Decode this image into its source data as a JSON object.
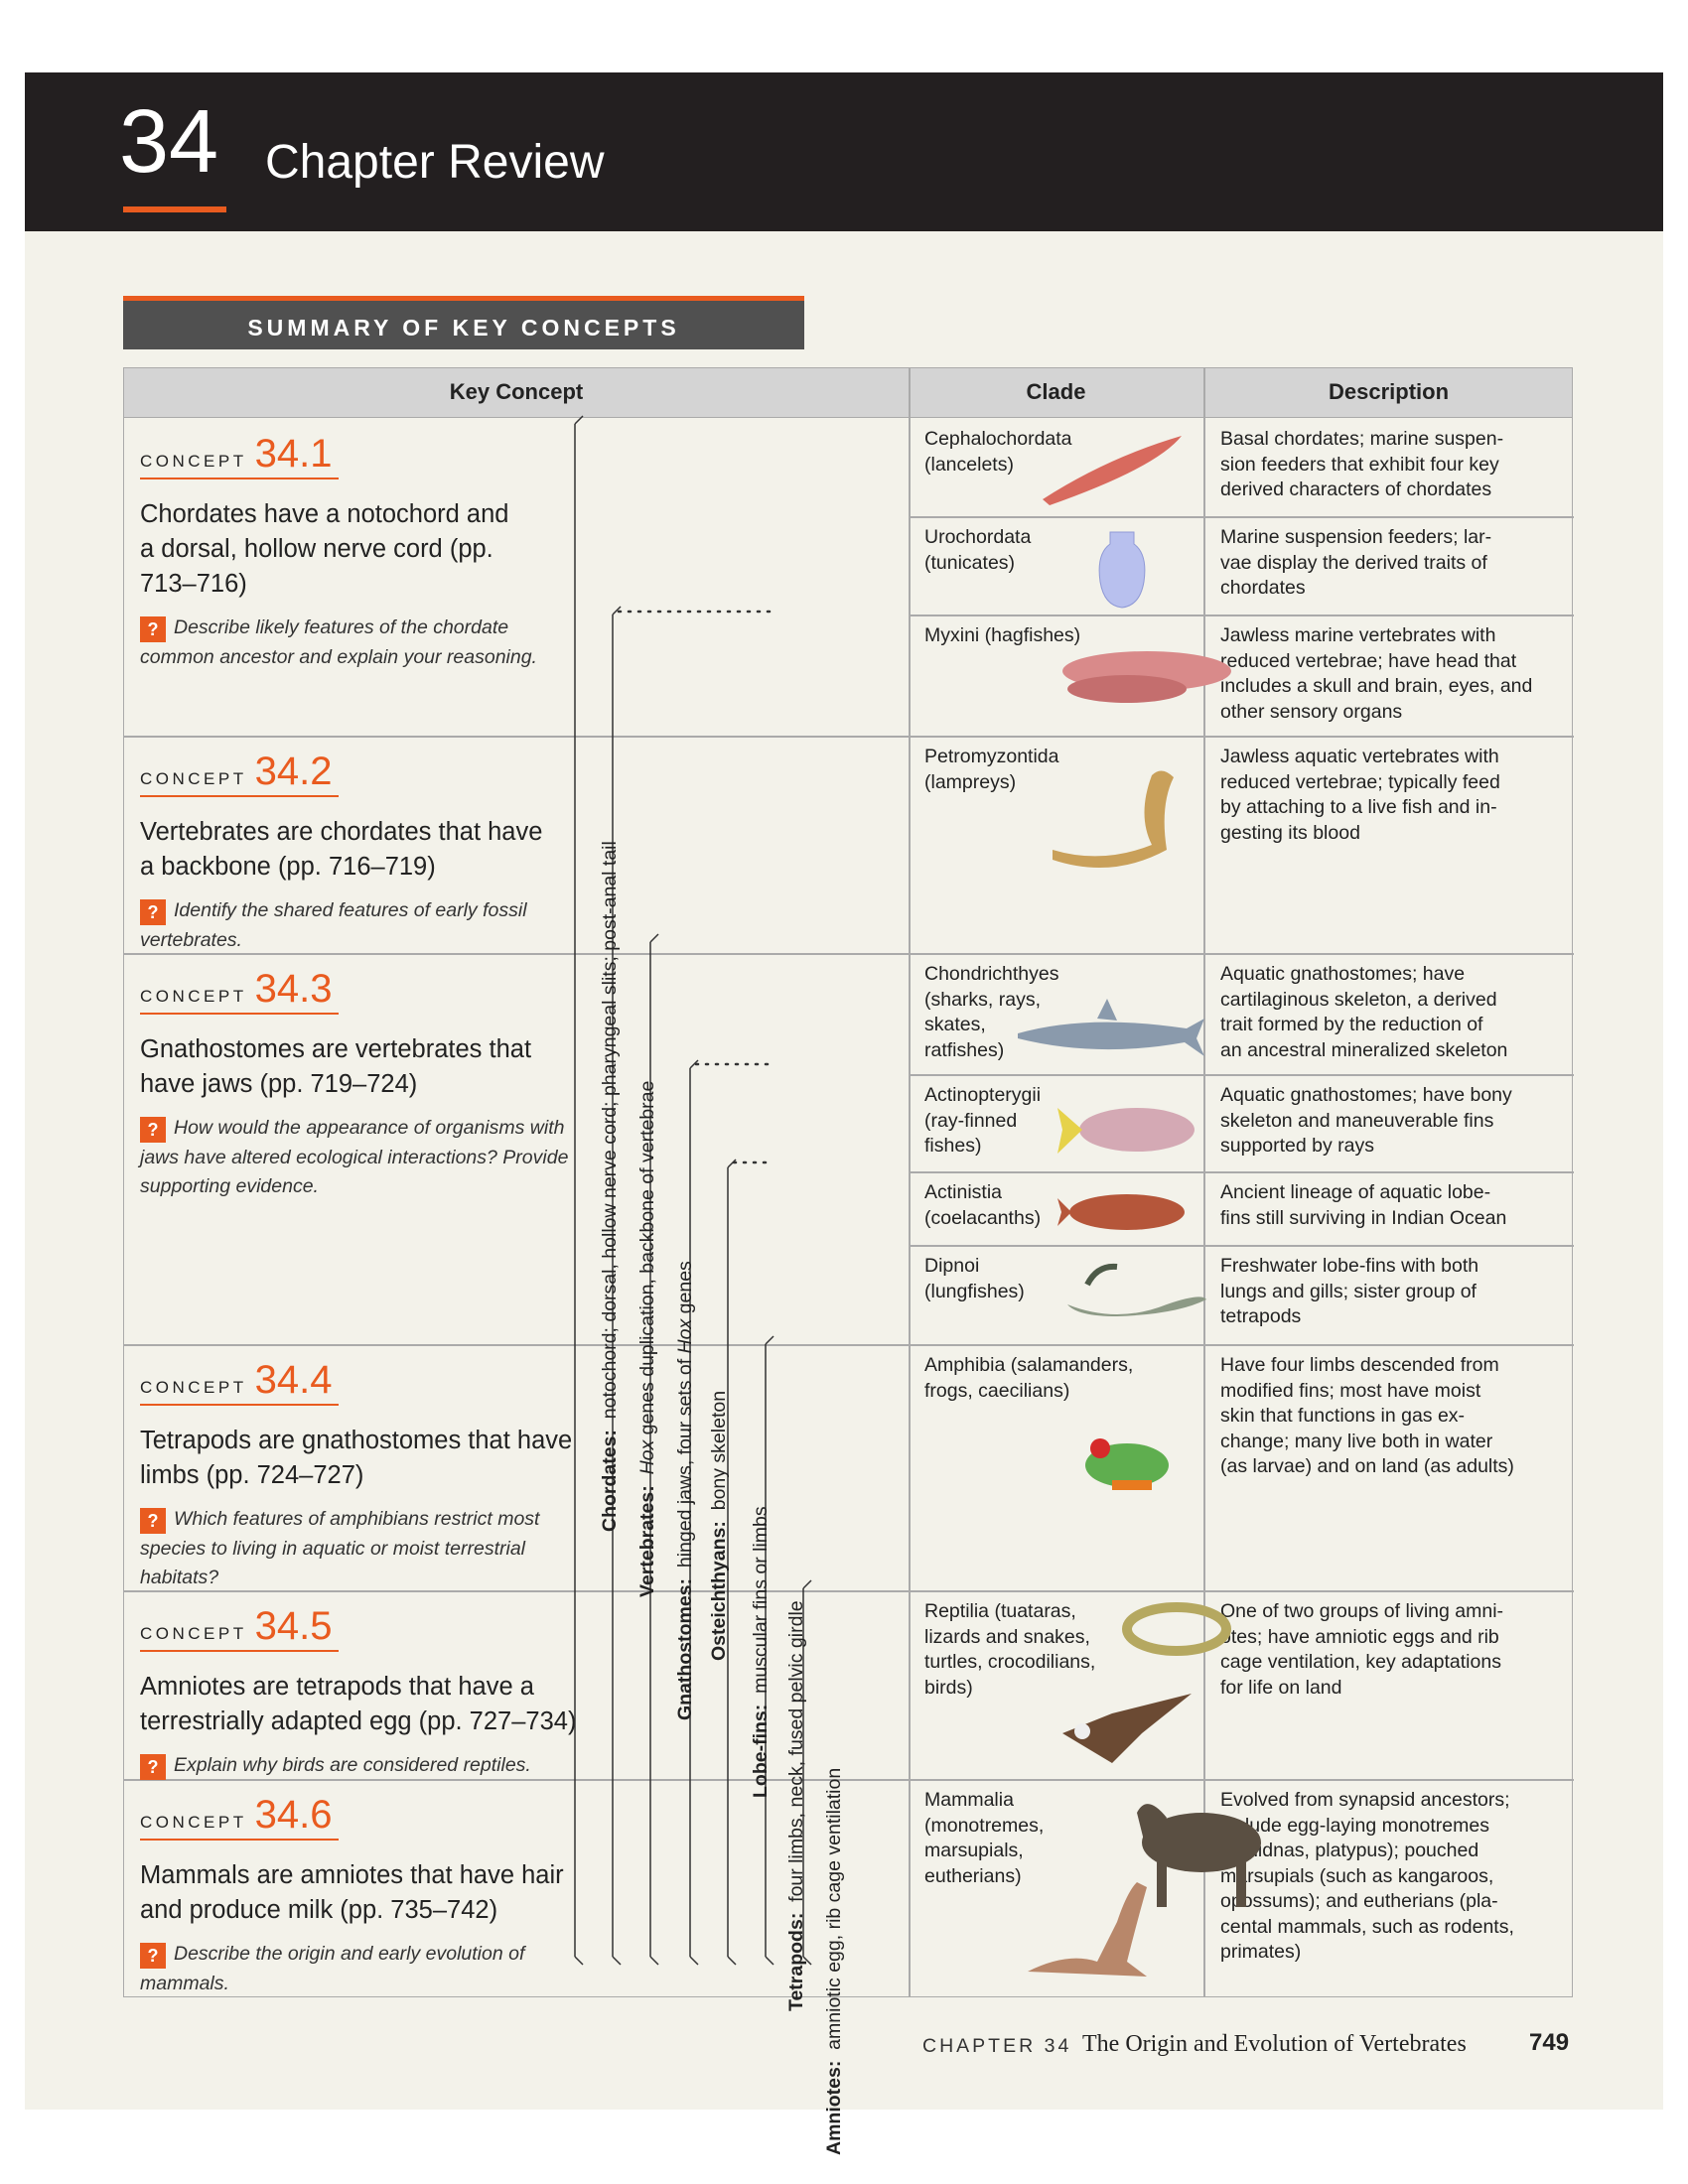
{
  "chapter": {
    "number": "34",
    "title": "Chapter Review"
  },
  "summary_title": "SUMMARY OF KEY CONCEPTS",
  "table": {
    "headers": [
      "Key Concept",
      "Clade",
      "Description"
    ],
    "concept_word": "CONCEPT",
    "concepts": [
      {
        "number": "34.1",
        "heading": "Chordates have a notochord and a dorsal, hollow nerve cord (pp. 713–716)",
        "question": "Describe likely features of the chordate common ancestor and explain your reasoning."
      },
      {
        "number": "34.2",
        "heading": "Vertebrates are chordates that have a backbone (pp. 716–719)",
        "question": "Identify the shared features of early fossil vertebrates."
      },
      {
        "number": "34.3",
        "heading": "Gnathostomes are vertebrates that have jaws (pp. 719–724)",
        "question": "How would the appearance of organisms with jaws have altered ecological interactions? Provide supporting evidence."
      },
      {
        "number": "34.4",
        "heading": "Tetrapods are gnathostomes that have limbs (pp. 724–727)",
        "question": "Which features of amphibians restrict most species to living in aquatic or moist terrestrial habitats?"
      },
      {
        "number": "34.5",
        "heading": "Amniotes are tetrapods that have a terrestrially adapted egg (pp. 727–734)",
        "question": "Explain why birds are considered reptiles."
      },
      {
        "number": "34.6",
        "heading": "Mammals are amniotes that have hair and produce milk (pp. 735–742)",
        "question": "Describe the origin and early evolution of mammals."
      }
    ],
    "clades": [
      {
        "name": "Cephalochordata\n(lancelets)",
        "description": "Basal chordates; marine suspen-\nsion feeders that exhibit four key\nderived characters of chordates",
        "animal": "lancelet-image"
      },
      {
        "name": "Urochordata\n(tunicates)",
        "description": "Marine suspension feeders; lar-\nvae display the derived traits of\nchordates",
        "animal": "tunicate-image"
      },
      {
        "name": "Myxini (hagfishes)",
        "description": "Jawless marine vertebrates with\nreduced vertebrae; have head that\nincludes a skull and brain, eyes, and\nother sensory organs",
        "animal": "hagfish-image"
      },
      {
        "name": "Petromyzontida\n(lampreys)",
        "description": "Jawless aquatic vertebrates with\nreduced vertebrae; typically feed\nby attaching to a live fish and in-\ngesting its blood",
        "animal": "lamprey-image"
      },
      {
        "name": "Chondrichthyes\n(sharks, rays,\nskates,\nratfishes)",
        "description": "Aquatic gnathostomes; have\ncartilaginous skeleton, a derived\ntrait formed by the reduction of\nan ancestral mineralized skeleton",
        "animal": "shark-image"
      },
      {
        "name": "Actinopterygii\n(ray-finned\nfishes)",
        "description": "Aquatic gnathostomes; have bony\nskeleton and maneuverable fins\nsupported by rays",
        "animal": "ray-finned-fish-image"
      },
      {
        "name": "Actinistia\n(coelacanths)",
        "description": "Ancient lineage of aquatic lobe-\nfins still surviving in Indian Ocean",
        "animal": "coelacanth-image"
      },
      {
        "name": "Dipnoi\n(lungfishes)",
        "description": "Freshwater lobe-fins with both\nlungs and gills; sister group of\ntetrapods",
        "animal": "lungfish-image"
      },
      {
        "name": "Amphibia (salamanders,\nfrogs, caecilians)",
        "description": "Have four limbs descended from\nmodified fins; most have moist\nskin that functions in gas ex-\nchange; many live both in water\n(as larvae) and on land (as adults)",
        "animal": "frog-image"
      },
      {
        "name": "Reptilia (tuataras,\nlizards and snakes,\nturtles, crocodilians,\nbirds)",
        "description": "One of two groups of living amni-\notes; have amniotic eggs and rib\ncage ventilation, key adaptations\nfor life on land",
        "animal": "snake-and-hawk-image"
      },
      {
        "name": "Mammalia\n(monotremes,\nmarsupials,\neutherians)",
        "description": "Evolved from synapsid ancestors;\ninclude egg-laying monotremes\n(echidnas, platypus); pouched\nmarsupials (such as kangaroos,\nopossums); and eutherians (pla-\ncental mammals, such as rodents,\nprimates)",
        "animal": "wildebeest-and-kangaroo-image"
      }
    ],
    "tree_labels": [
      {
        "group": "Chordates:",
        "traits": "notochord; dorsal, hollow nerve cord; pharyngeal slits; post-anal tail"
      },
      {
        "group": "Vertebrates:",
        "traits_pre": "",
        "traits_italic": "Hox",
        "traits_post": " genes duplication, backbone of vertebrae"
      },
      {
        "group": "Gnathostomes:",
        "traits_pre": "hinged jaws, four sets of ",
        "traits_italic": "Hox",
        "traits_post": " genes"
      },
      {
        "group": "Osteichthyans:",
        "traits": "bony skeleton"
      },
      {
        "group": "Lobe-fins:",
        "traits": "muscular fins or limbs"
      },
      {
        "group": "Tetrapods:",
        "traits": "four limbs, neck, fused pelvic girdle"
      },
      {
        "group": "Amniotes:",
        "traits": "amniotic egg, rib cage ventilation"
      }
    ]
  },
  "footer": {
    "chapter_label": "CHAPTER 34",
    "chapter_title": "The Origin and Evolution of Vertebrates",
    "page": "749"
  },
  "colors": {
    "accent": "#e95b1f",
    "header_band": "#231f20",
    "page_bg": "#f3f2ea",
    "table_header": "#d4d4d4"
  }
}
